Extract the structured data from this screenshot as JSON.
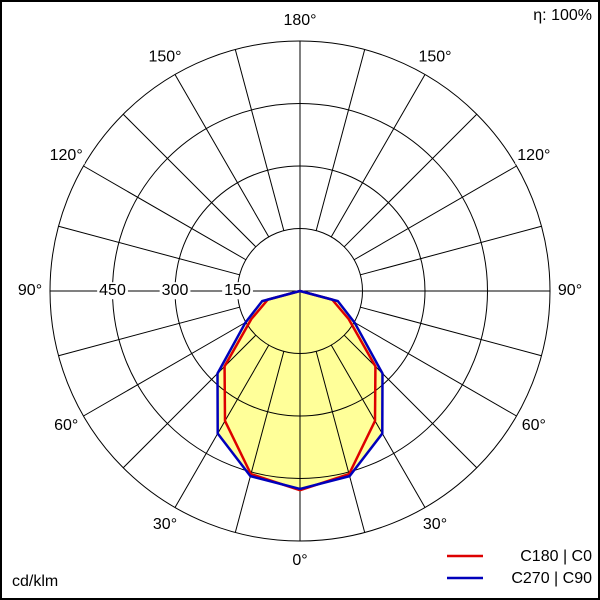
{
  "chart_data": {
    "type": "polar",
    "efficiency": "η: 100%",
    "unit": "cd/klm",
    "rlim": [
      0,
      600
    ],
    "rticks": [
      150,
      300,
      450
    ],
    "angle_step": 15,
    "angle_ticks": [
      {
        "value": 0,
        "label": "0°"
      },
      {
        "value": 30,
        "label": "30°"
      },
      {
        "value": 60,
        "label": "60°"
      },
      {
        "value": 90,
        "label": "90°"
      },
      {
        "value": 120,
        "label": "120°"
      },
      {
        "value": 150,
        "label": "150°"
      },
      {
        "value": 180,
        "label": "180°"
      }
    ],
    "angles": [
      0,
      15,
      30,
      45,
      60,
      75,
      90
    ],
    "fill_color": "#ffff99",
    "series": [
      {
        "name": "C180 | C0",
        "color": "#dd0000",
        "values": [
          478,
          455,
          360,
          256,
          135,
          80,
          0
        ]
      },
      {
        "name": "C270 | C90",
        "color": "#0000bb",
        "values": [
          475,
          460,
          395,
          280,
          151,
          94,
          0
        ]
      }
    ]
  }
}
